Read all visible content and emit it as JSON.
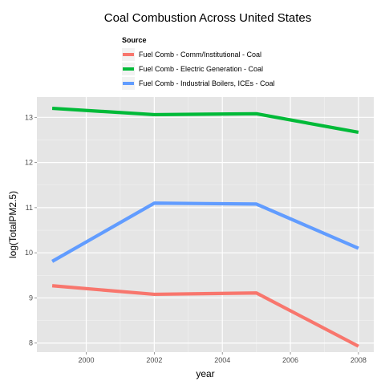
{
  "chart_data": {
    "type": "line",
    "title": "Coal Combustion Across United States",
    "xlabel": "year",
    "ylabel": "log(TotalPM2.5)",
    "x": [
      1999,
      2002,
      2005,
      2008
    ],
    "xlim": [
      1998.55,
      2008.45
    ],
    "ylim": [
      7.8,
      13.45
    ],
    "xticks": [
      2000,
      2002,
      2004,
      2006,
      2008
    ],
    "yticks": [
      8,
      9,
      10,
      11,
      12,
      13
    ],
    "grid": true,
    "legend": {
      "title": "Source",
      "position": "top"
    },
    "series": [
      {
        "name": "Fuel Comb - Comm/Institutional - Coal",
        "color": "#F8766D",
        "values": [
          9.27,
          9.08,
          9.11,
          7.93
        ]
      },
      {
        "name": "Fuel Comb - Electric Generation - Coal",
        "color": "#00BA38",
        "values": [
          13.2,
          13.06,
          13.08,
          12.67
        ]
      },
      {
        "name": "Fuel Comb - Industrial Boilers, ICEs - Coal",
        "color": "#619CFF",
        "values": [
          9.81,
          11.1,
          11.08,
          10.1
        ]
      }
    ]
  }
}
